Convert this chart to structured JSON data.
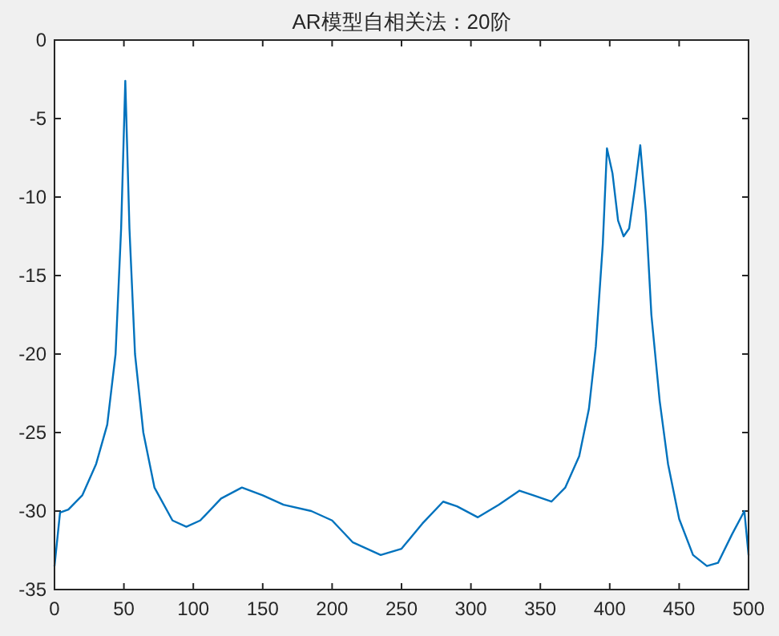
{
  "chart_data": {
    "type": "line",
    "title": "AR模型自相关法：20阶",
    "color": "#0072bd",
    "grid": false,
    "line_style": "solid",
    "xlim": [
      0,
      500
    ],
    "xticks": [
      0,
      50,
      100,
      150,
      200,
      250,
      300,
      350,
      400,
      450,
      500
    ],
    "ylim": [
      -35,
      0
    ],
    "yticks": [
      -35,
      -30,
      -25,
      -20,
      -15,
      -10,
      -5,
      0
    ],
    "x": [
      0,
      4,
      10,
      20,
      30,
      38,
      44,
      48,
      51,
      54,
      58,
      64,
      72,
      85,
      95,
      105,
      120,
      135,
      150,
      165,
      185,
      200,
      215,
      235,
      250,
      265,
      280,
      290,
      305,
      320,
      335,
      345,
      358,
      368,
      378,
      385,
      390,
      395,
      398,
      402,
      406,
      410,
      414,
      418,
      422,
      426,
      430,
      436,
      442,
      450,
      460,
      470,
      478,
      488,
      497,
      500
    ],
    "values": [
      -33.5,
      -30.1,
      -29.9,
      -29,
      -27,
      -24.5,
      -20,
      -12,
      -2.6,
      -12,
      -20,
      -25,
      -28.5,
      -30.6,
      -31,
      -30.6,
      -29.2,
      -28.5,
      -29,
      -29.6,
      -30,
      -30.6,
      -32,
      -32.8,
      -32.4,
      -30.8,
      -29.4,
      -29.7,
      -30.4,
      -29.6,
      -28.7,
      -29,
      -29.4,
      -28.5,
      -26.5,
      -23.5,
      -19.5,
      -13,
      -6.9,
      -8.5,
      -11.5,
      -12.5,
      -12,
      -9.5,
      -6.7,
      -11,
      -17.5,
      -23,
      -27,
      -30.5,
      -32.8,
      -33.5,
      -33.3,
      -31.5,
      -30,
      -32.8
    ]
  }
}
